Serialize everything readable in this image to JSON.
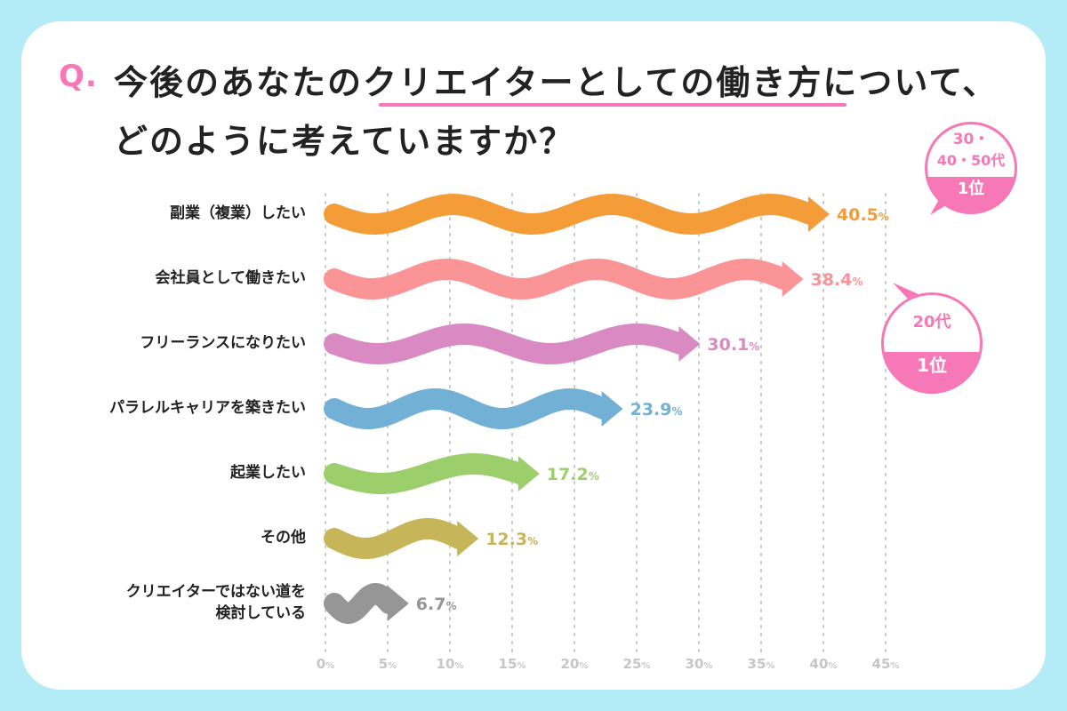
{
  "question": {
    "prefix": "Q.",
    "line1_a": "今後のあなたの",
    "line1_b": "クリエイターとしての働き方",
    "line1_c": "について、",
    "line2": "どのように考えていますか？"
  },
  "colors": {
    "background": "#b3ecf6",
    "accent": "#f778b6"
  },
  "chart_data": {
    "type": "bar",
    "title": "今後のあなたのクリエイターとしての働き方について、どのように考えていますか？",
    "categories": [
      "副業（複業）したい",
      "会社員として働きたい",
      "フリーランスになりたい",
      "パラレルキャリアを築きたい",
      "起業したい",
      "その他",
      "クリエイターではない道を\n検討している"
    ],
    "values": [
      40.5,
      38.4,
      30.1,
      23.9,
      17.2,
      12.3,
      6.7
    ],
    "value_labels": [
      "40.5",
      "38.4",
      "30.1",
      "23.9",
      "17.2",
      "12.3",
      "6.7"
    ],
    "unit": "%",
    "colors": [
      "#f39c38",
      "#fb9497",
      "#da8ac2",
      "#72b0d6",
      "#9ccf6b",
      "#c7b55a",
      "#969696"
    ],
    "xlim": [
      0,
      45
    ],
    "xticks": [
      0,
      5,
      10,
      15,
      20,
      25,
      30,
      35,
      40,
      45
    ],
    "xtick_labels": [
      "0",
      "5",
      "10",
      "15",
      "20",
      "25",
      "30",
      "35",
      "40",
      "45"
    ],
    "xlabel": "",
    "ylabel": "",
    "grid": true,
    "annotations": [
      {
        "line1": "30・",
        "line2": "40・50代",
        "rank": "1位",
        "target": 0
      },
      {
        "line1": "20代",
        "rank": "1位",
        "target": 1
      }
    ]
  }
}
